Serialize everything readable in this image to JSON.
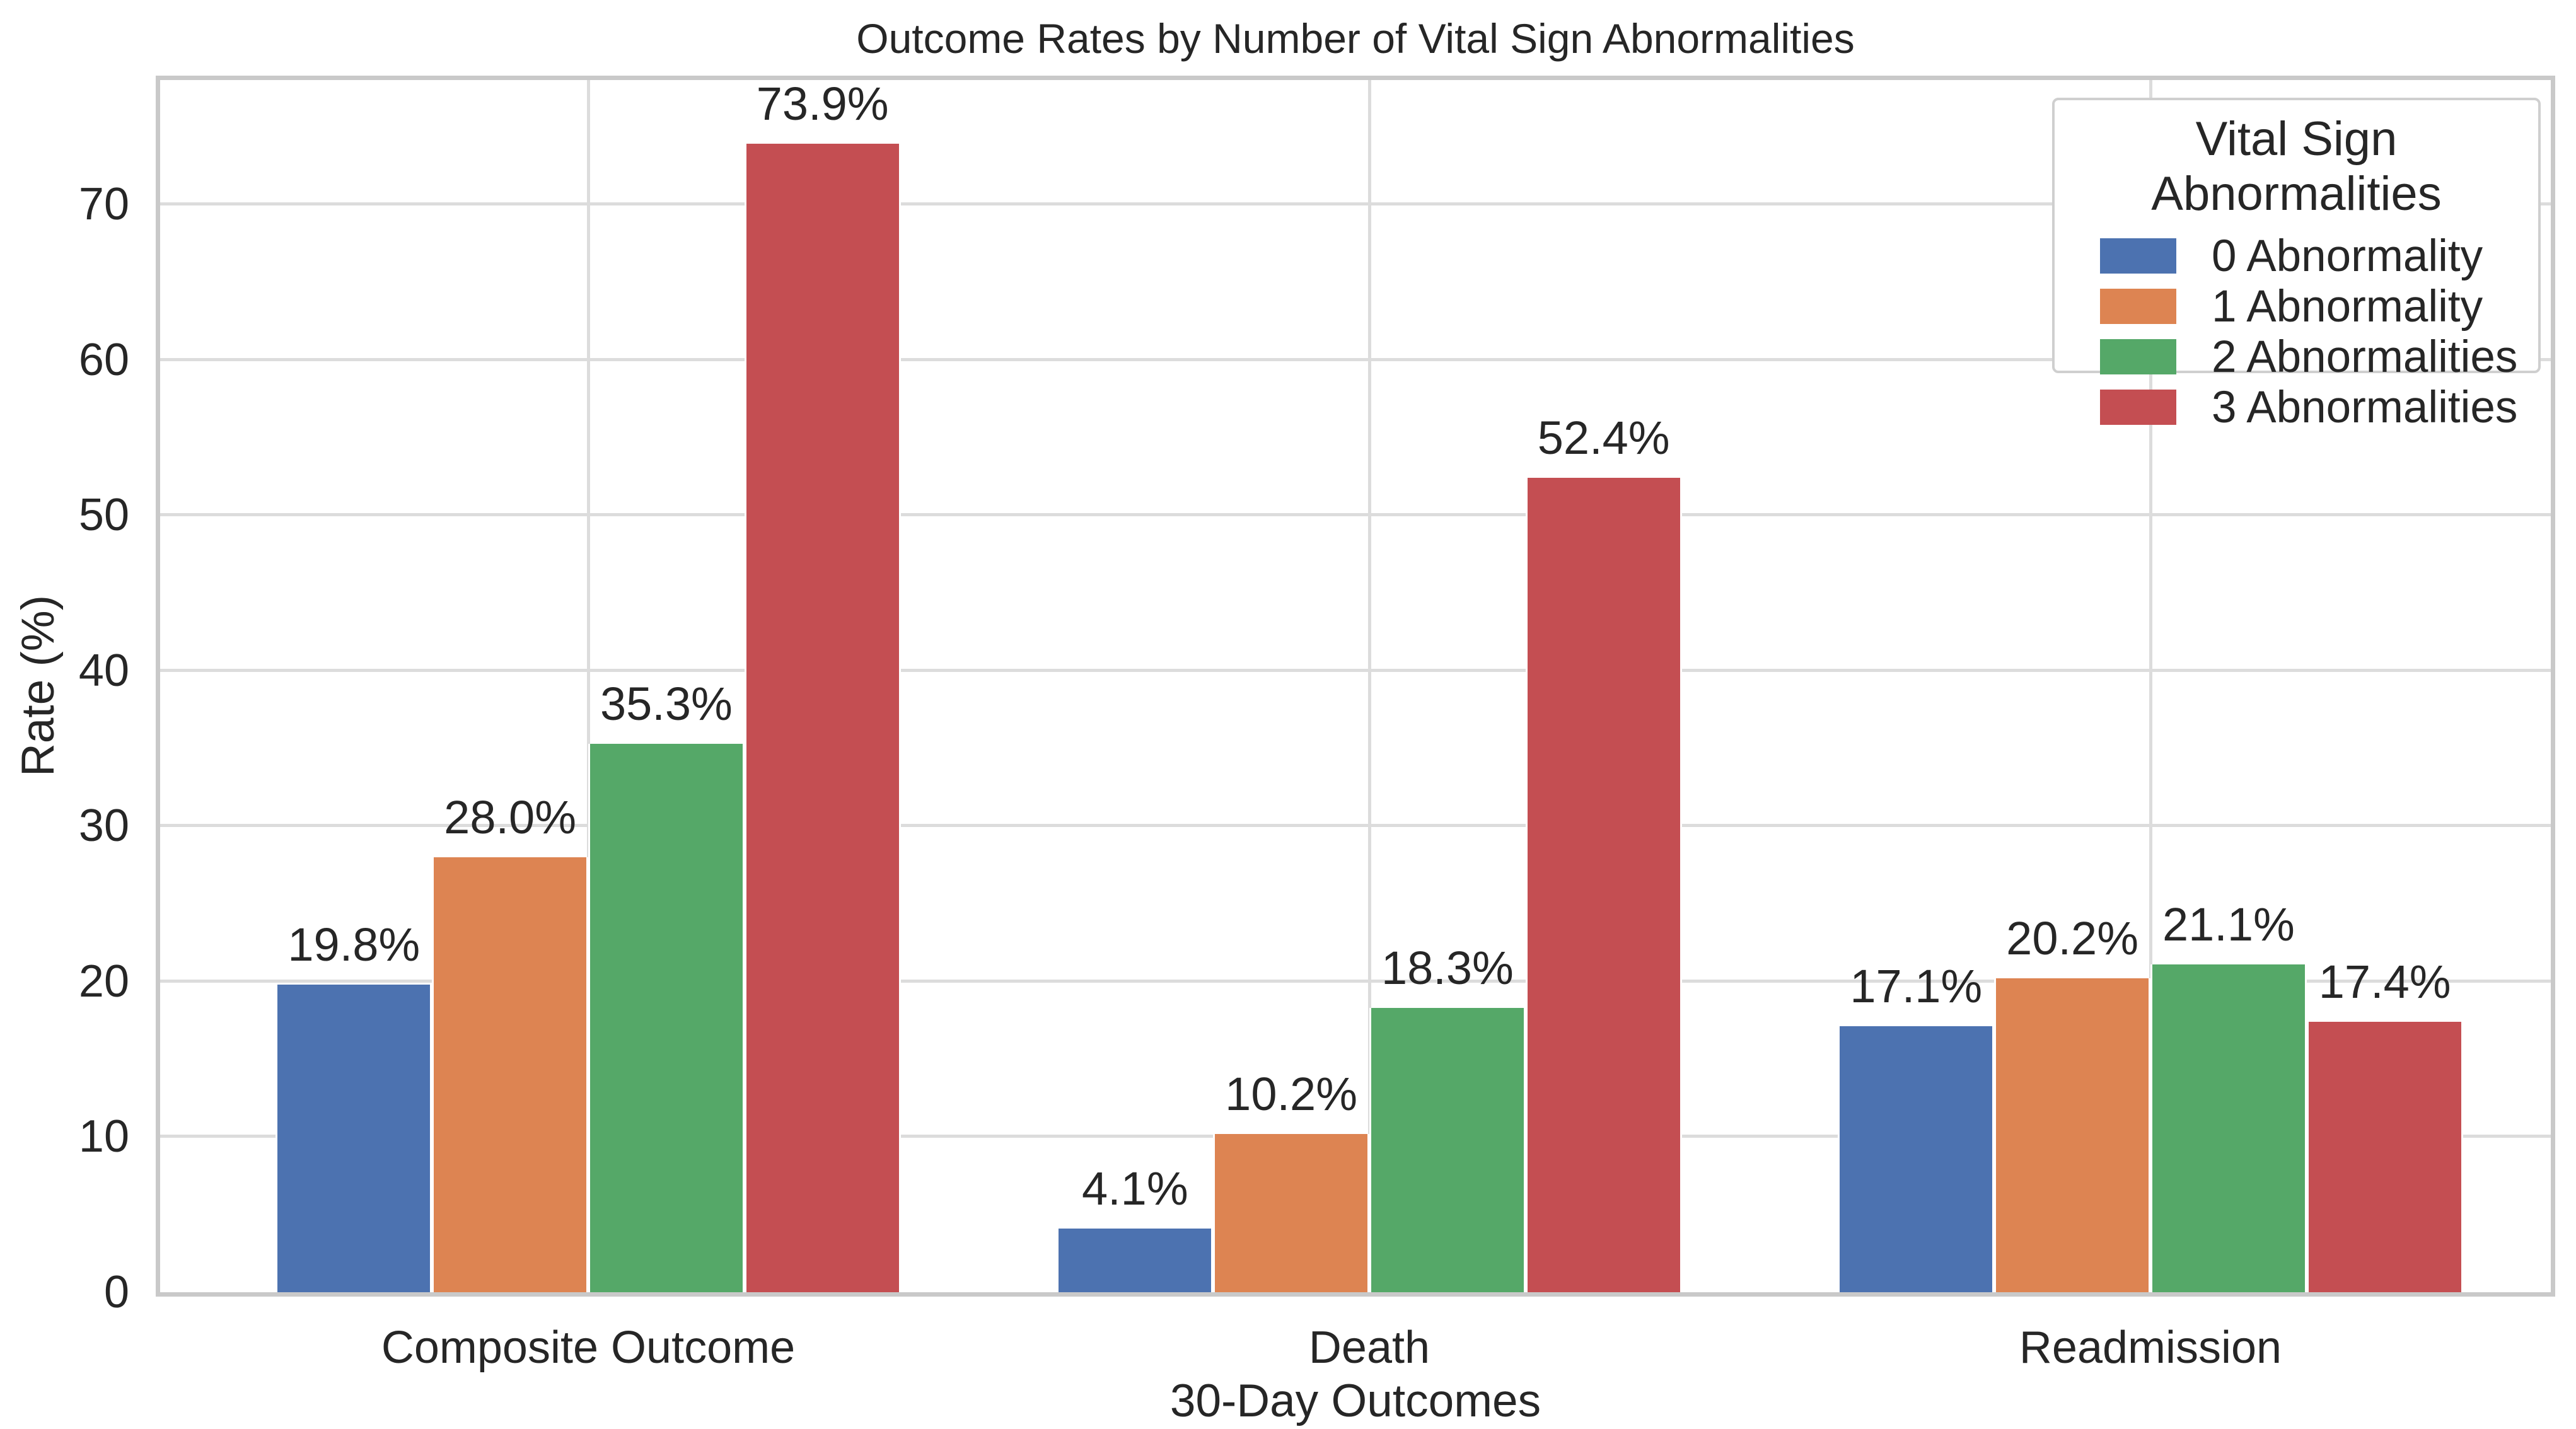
{
  "chart_data": {
    "type": "bar",
    "title": "Outcome Rates by Number of Vital Sign Abnormalities",
    "xlabel": "30-Day Outcomes",
    "ylabel": "Rate (%)",
    "categories": [
      "Composite Outcome",
      "Death",
      "Readmission"
    ],
    "series": [
      {
        "name": "0 Abnormality",
        "color": "#4C72B0",
        "values": [
          19.8,
          4.1,
          17.1
        ],
        "labels": [
          "19.8%",
          "4.1%",
          "17.1%"
        ]
      },
      {
        "name": "1 Abnormality",
        "color": "#DD8452",
        "values": [
          28.0,
          10.2,
          20.2
        ],
        "labels": [
          "28.0%",
          "10.2%",
          "20.2%"
        ]
      },
      {
        "name": "2 Abnormalities",
        "color": "#55A868",
        "values": [
          35.3,
          18.3,
          21.1
        ],
        "labels": [
          "35.3%",
          "18.3%",
          "21.1%"
        ]
      },
      {
        "name": "3 Abnormalities",
        "color": "#C44E52",
        "values": [
          73.9,
          52.4,
          17.4
        ],
        "labels": [
          "73.9%",
          "52.4%",
          "17.4%"
        ]
      }
    ],
    "yticks": [
      0,
      10,
      20,
      30,
      40,
      50,
      60,
      70
    ],
    "ytick_labels": [
      "0",
      "10",
      "20",
      "30",
      "40",
      "50",
      "60",
      "70"
    ],
    "ylim": [
      0,
      78
    ],
    "grid": true,
    "legend_title": "Vital Sign Abnormalities",
    "legend_position": "upper right",
    "colors": {
      "grid": "#dcdcdc",
      "spine": "#c9c9c9",
      "text": "#262626",
      "background": "#ffffff"
    }
  }
}
